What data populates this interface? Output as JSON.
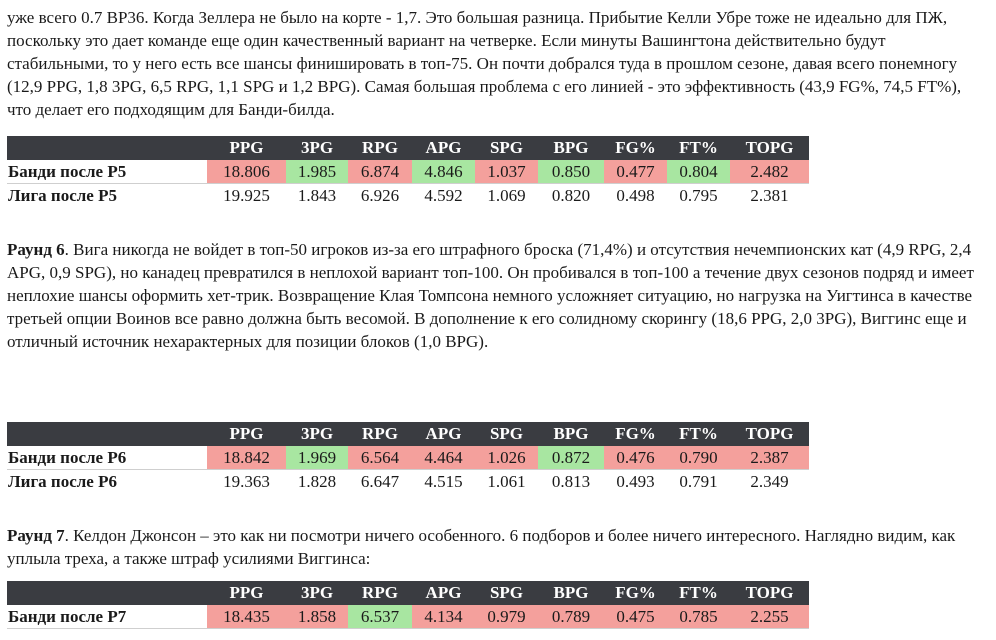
{
  "para1": "уже всего 0.7 ВР36. Когда Зеллера не было на корте - 1,7. Это большая разница. Прибытие Келли Убре тоже не идеально для ПЖ, поскольку это дает команде еще один качественный вариант на четверке. Если минуты Вашингтона действительно будут стабильными, то у него есть все шансы финишировать в топ-75. Он почти добрался туда в прошлом сезоне, давая всего понемногу (12,9 PPG, 1,8 3PG, 6,5 RPG, 1,1 SPG и 1,2 BPG). Самая большая проблема с его линией - это эффективность (43,9 FG%, 74,5 FT%), что делает его подходящим для Банди-билда.",
  "headers": [
    "PPG",
    "3PG",
    "RPG",
    "APG",
    "SPG",
    "BPG",
    "FG%",
    "FT%",
    "TOPG"
  ],
  "table_p5": {
    "team_label": "Банди после Р5",
    "team": [
      "18.806",
      "1.985",
      "6.874",
      "4.846",
      "1.037",
      "0.850",
      "0.477",
      "0.804",
      "2.482"
    ],
    "team_status": [
      "bad",
      "good",
      "bad",
      "good",
      "bad",
      "good",
      "bad",
      "good",
      "bad"
    ],
    "league_label": "Лига после Р5",
    "league": [
      "19.925",
      "1.843",
      "6.926",
      "4.592",
      "1.069",
      "0.820",
      "0.498",
      "0.795",
      "2.381"
    ]
  },
  "para2": {
    "lead": "Раунд 6",
    "text": ". Вига никогда не войдет в топ-50 игроков из-за его штрафного броска (71,4%) и отсутствия нечемпионских кат (4,9 RPG, 2,4 APG, 0,9 SPG), но канадец превратился в неплохой вариант топ-100. Он пробивался в топ-100 а течение двух сезонов подряд и имеет неплохие шансы оформить хет-трик. Возвращение Клая Томпсона немного усложняет ситуацию, но нагрузка на Уигтинса в качестве третьей опции Воинов все равно должна быть весомой. В дополнение к его солидному скорингу (18,6 PPG, 2,0 3PG), Виггинс еще и отличный источник нехарактерных для позиции блоков (1,0 BPG)."
  },
  "table_p6": {
    "team_label": "Банди после Р6",
    "team": [
      "18.842",
      "1.969",
      "6.564",
      "4.464",
      "1.026",
      "0.872",
      "0.476",
      "0.790",
      "2.387"
    ],
    "team_status": [
      "bad",
      "good",
      "bad",
      "bad",
      "bad",
      "good",
      "bad",
      "bad",
      "bad"
    ],
    "league_label": "Лига после Р6",
    "league": [
      "19.363",
      "1.828",
      "6.647",
      "4.515",
      "1.061",
      "0.813",
      "0.493",
      "0.791",
      "2.349"
    ]
  },
  "para3": {
    "lead": "Раунд 7",
    "text": ". Келдон Джонсон – это как ни посмотри ничего особенного. 6 подборов и более ничего интересного. Наглядно видим, как уплыла треха, а также штраф усилиями Виггинса:"
  },
  "table_p7": {
    "team_label": "Банди после Р7",
    "team": [
      "18.435",
      "1.858",
      "6.537",
      "4.134",
      "0.979",
      "0.789",
      "0.475",
      "0.785",
      "2.255"
    ],
    "team_status": [
      "bad",
      "bad",
      "good",
      "bad",
      "bad",
      "bad",
      "bad",
      "bad",
      "bad"
    ]
  },
  "colors": {
    "header_bg": "#3a3c41",
    "good": "#a8e6a1",
    "bad": "#f4a09c"
  }
}
